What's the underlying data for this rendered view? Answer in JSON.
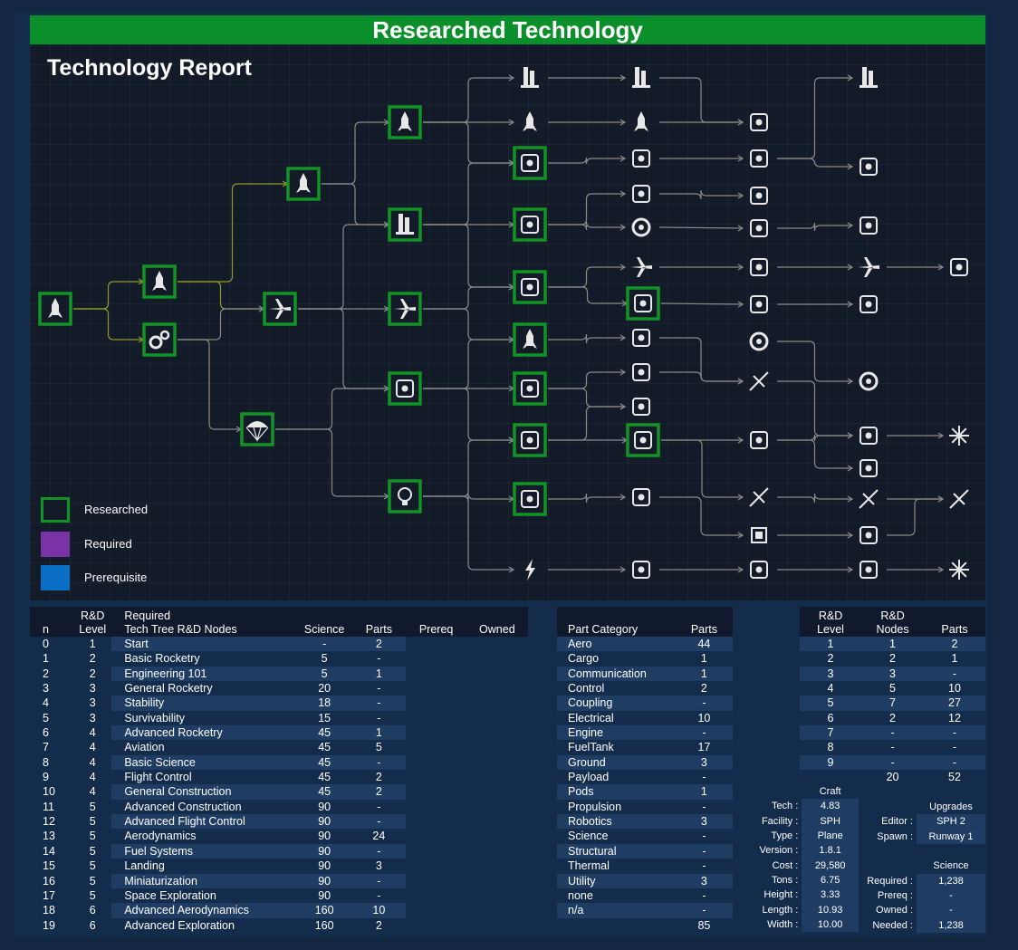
{
  "banner_title": "Researched Technology",
  "report_title": "Technology Report",
  "legend": [
    {
      "label": "Researched",
      "fill": "#131a28",
      "border": "#129325"
    },
    {
      "label": "Required",
      "fill": "#7a33a6",
      "border": "#7a33a6"
    },
    {
      "label": "Prerequisite",
      "fill": "#0a6fc4",
      "border": "#0a6fc4"
    }
  ],
  "colors": {
    "researched_border": "#129325",
    "node_fill": "#131a28",
    "line": "#8a8a8a",
    "line_active": "#8f9a2a",
    "banner": "#0b8f2b"
  },
  "tree_nodes": [
    {
      "icon": "start-node-icon",
      "researched": true
    },
    {
      "icon": "rocket-icon",
      "researched": true
    },
    {
      "icon": "gears-icon",
      "researched": true
    },
    {
      "icon": "stability-fins-icon",
      "researched": true
    },
    {
      "icon": "parachute-icon",
      "researched": true
    },
    {
      "icon": "general-rocketry-icon",
      "researched": true
    },
    {
      "icon": "advanced-rocketry-icon",
      "researched": true
    },
    {
      "icon": "general-construction-icon",
      "researched": true
    },
    {
      "icon": "aviation-plane-icon",
      "researched": true
    },
    {
      "icon": "flight-control-icon",
      "researched": true
    },
    {
      "icon": "basic-science-bulb-icon",
      "researched": true
    },
    {
      "icon": "fuel-systems-nozzle-icon",
      "researched": true
    },
    {
      "icon": "advanced-construction-icon",
      "researched": true
    },
    {
      "icon": "aerodynamics-icon",
      "researched": true
    },
    {
      "icon": "landing-icon",
      "researched": true
    },
    {
      "icon": "advanced-flight-control-icon",
      "researched": true
    },
    {
      "icon": "space-exploration-icon",
      "researched": true
    },
    {
      "icon": "miniaturization-icon",
      "researched": true
    },
    {
      "icon": "advanced-aerodynamics-icon",
      "researched": true
    },
    {
      "icon": "advanced-exploration-icon",
      "researched": true
    }
  ],
  "research_table": {
    "headers": {
      "n": "n",
      "level_top": "R&D",
      "level_bottom": "Level",
      "nodes_top": "Required",
      "nodes_bottom": "Tech Tree R&D Nodes",
      "science": "Science",
      "parts": "Parts",
      "prereq": "Prereq",
      "owned": "Owned"
    },
    "rows": [
      {
        "n": "0",
        "level": "1",
        "name": "Start",
        "science": "-",
        "parts": "2"
      },
      {
        "n": "1",
        "level": "2",
        "name": "Basic Rocketry",
        "science": "5",
        "parts": "-"
      },
      {
        "n": "2",
        "level": "2",
        "name": "Engineering 101",
        "science": "5",
        "parts": "1"
      },
      {
        "n": "3",
        "level": "3",
        "name": "General Rocketry",
        "science": "20",
        "parts": "-"
      },
      {
        "n": "4",
        "level": "3",
        "name": "Stability",
        "science": "18",
        "parts": "-"
      },
      {
        "n": "5",
        "level": "3",
        "name": "Survivability",
        "science": "15",
        "parts": "-"
      },
      {
        "n": "6",
        "level": "4",
        "name": "Advanced Rocketry",
        "science": "45",
        "parts": "1"
      },
      {
        "n": "7",
        "level": "4",
        "name": "Aviation",
        "science": "45",
        "parts": "5"
      },
      {
        "n": "8",
        "level": "4",
        "name": "Basic Science",
        "science": "45",
        "parts": "-"
      },
      {
        "n": "9",
        "level": "4",
        "name": "Flight Control",
        "science": "45",
        "parts": "2"
      },
      {
        "n": "10",
        "level": "4",
        "name": "General Construction",
        "science": "45",
        "parts": "2"
      },
      {
        "n": "11",
        "level": "5",
        "name": "Advanced Construction",
        "science": "90",
        "parts": "-"
      },
      {
        "n": "12",
        "level": "5",
        "name": "Advanced Flight Control",
        "science": "90",
        "parts": "-"
      },
      {
        "n": "13",
        "level": "5",
        "name": "Aerodynamics",
        "science": "90",
        "parts": "24"
      },
      {
        "n": "14",
        "level": "5",
        "name": "Fuel Systems",
        "science": "90",
        "parts": "-"
      },
      {
        "n": "15",
        "level": "5",
        "name": "Landing",
        "science": "90",
        "parts": "3"
      },
      {
        "n": "16",
        "level": "5",
        "name": "Miniaturization",
        "science": "90",
        "parts": "-"
      },
      {
        "n": "17",
        "level": "5",
        "name": "Space Exploration",
        "science": "90",
        "parts": "-"
      },
      {
        "n": "18",
        "level": "6",
        "name": "Advanced Aerodynamics",
        "science": "160",
        "parts": "10"
      },
      {
        "n": "19",
        "level": "6",
        "name": "Advanced Exploration",
        "science": "160",
        "parts": "2"
      }
    ]
  },
  "category_table": {
    "headers": {
      "category": "Part Category",
      "parts": "Parts"
    },
    "rows": [
      {
        "category": "Aero",
        "parts": "44"
      },
      {
        "category": "Cargo",
        "parts": "1"
      },
      {
        "category": "Communication",
        "parts": "1"
      },
      {
        "category": "Control",
        "parts": "2"
      },
      {
        "category": "Coupling",
        "parts": "-"
      },
      {
        "category": "Electrical",
        "parts": "10"
      },
      {
        "category": "Engine",
        "parts": "-"
      },
      {
        "category": "FuelTank",
        "parts": "17"
      },
      {
        "category": "Ground",
        "parts": "3"
      },
      {
        "category": "Payload",
        "parts": "-"
      },
      {
        "category": "Pods",
        "parts": "1"
      },
      {
        "category": "Propulsion",
        "parts": "-"
      },
      {
        "category": "Robotics",
        "parts": "3"
      },
      {
        "category": "Science",
        "parts": "-"
      },
      {
        "category": "Structural",
        "parts": "-"
      },
      {
        "category": "Thermal",
        "parts": "-"
      },
      {
        "category": "Utility",
        "parts": "3"
      },
      {
        "category": "none",
        "parts": "-"
      },
      {
        "category": "n/a",
        "parts": "-"
      }
    ],
    "total": "85"
  },
  "level_table": {
    "headers": {
      "level_top": "R&D",
      "level_bottom": "Level",
      "nodes_top": "R&D",
      "nodes_bottom": "Nodes",
      "parts": "Parts"
    },
    "rows": [
      {
        "level": "1",
        "nodes": "1",
        "parts": "2"
      },
      {
        "level": "2",
        "nodes": "2",
        "parts": "1"
      },
      {
        "level": "3",
        "nodes": "3",
        "parts": "-"
      },
      {
        "level": "4",
        "nodes": "5",
        "parts": "10"
      },
      {
        "level": "5",
        "nodes": "7",
        "parts": "27"
      },
      {
        "level": "6",
        "nodes": "2",
        "parts": "12"
      },
      {
        "level": "7",
        "nodes": "-",
        "parts": "-"
      },
      {
        "level": "8",
        "nodes": "-",
        "parts": "-"
      },
      {
        "level": "9",
        "nodes": "-",
        "parts": "-"
      }
    ],
    "total_nodes": "20",
    "total_parts": "52"
  },
  "craft": {
    "header": "Craft",
    "rows": [
      {
        "label": "Tech :",
        "value": "4.83"
      },
      {
        "label": "Facility :",
        "value": "SPH"
      },
      {
        "label": "Type :",
        "value": "Plane"
      },
      {
        "label": "Version :",
        "value": "1.8.1"
      },
      {
        "label": "Cost :",
        "value": "29,580"
      },
      {
        "label": "Tons :",
        "value": "6.75"
      },
      {
        "label": "Height :",
        "value": "3.33"
      },
      {
        "label": "Length :",
        "value": "10.93"
      },
      {
        "label": "Width :",
        "value": "10.00"
      }
    ]
  },
  "upgrades": {
    "header": "Upgrades",
    "rows": [
      {
        "label": "Editor :",
        "value": "SPH 2"
      },
      {
        "label": "Spawn :",
        "value": "Runway 1"
      }
    ]
  },
  "science": {
    "header": "Science",
    "rows": [
      {
        "label": "Required :",
        "value": "1,238"
      },
      {
        "label": "Prereq :",
        "value": "-"
      },
      {
        "label": "Owned :",
        "value": "-"
      },
      {
        "label": "Needed :",
        "value": "1,238"
      }
    ]
  }
}
